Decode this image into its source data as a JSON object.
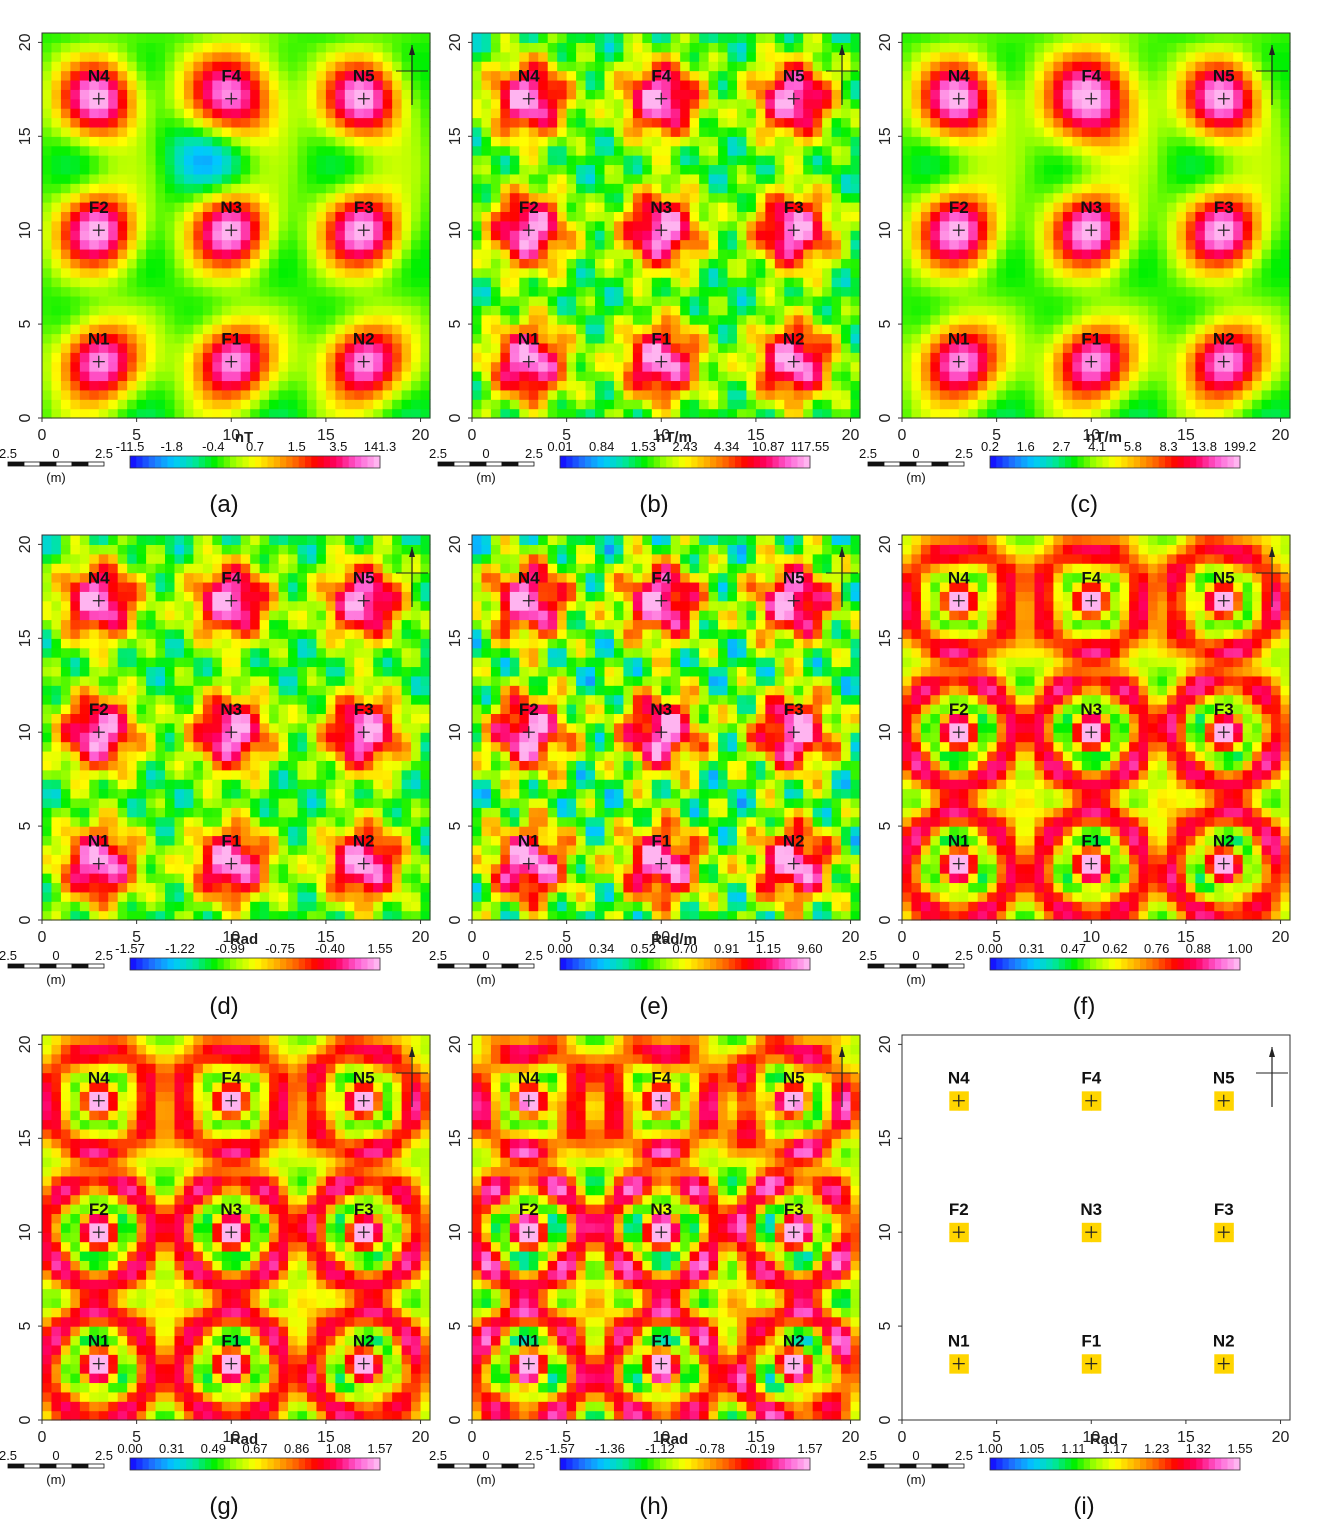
{
  "colors": {
    "ramp": [
      "#1414ff",
      "#1e78ff",
      "#00c8ff",
      "#00e6a0",
      "#00f000",
      "#a0ff00",
      "#ffff00",
      "#ffb400",
      "#ff6400",
      "#ff0000",
      "#ff0064",
      "#ff5ad2",
      "#ffb4f0"
    ]
  },
  "scale_bar": {
    "left": "2.5",
    "center": "0",
    "right": "2.5",
    "unit": "(m)"
  },
  "chart_data": [
    {
      "type": "heatmap",
      "caption": "(a)",
      "unit": "nT",
      "colorbar_ticks": [
        "-11.5",
        "-1.8",
        "-0.4",
        "0.7",
        "1.5",
        "3.5",
        "141.3"
      ],
      "x_ticks": [
        "0",
        "5",
        "10",
        "15",
        "20"
      ],
      "y_ticks": [
        "0",
        "5",
        "10",
        "15",
        "20"
      ],
      "xlim": [
        0,
        20.5
      ],
      "ylim": [
        0,
        20.5
      ],
      "targets": [
        {
          "label": "N4",
          "x": 3,
          "y": 17
        },
        {
          "label": "F4",
          "x": 10,
          "y": 17
        },
        {
          "label": "N5",
          "x": 17,
          "y": 17
        },
        {
          "label": "F2",
          "x": 3,
          "y": 10
        },
        {
          "label": "N3",
          "x": 10,
          "y": 10
        },
        {
          "label": "F3",
          "x": 17,
          "y": 10
        },
        {
          "label": "N1",
          "x": 3,
          "y": 3
        },
        {
          "label": "F1",
          "x": 10,
          "y": 3
        },
        {
          "label": "N2",
          "x": 17,
          "y": 3
        }
      ],
      "style": "smooth",
      "background": 0.45
    },
    {
      "type": "heatmap",
      "caption": "(b)",
      "unit": "nT/m",
      "colorbar_ticks": [
        "0.01",
        "0.84",
        "1.53",
        "2.43",
        "4.34",
        "10.87",
        "117.55"
      ],
      "x_ticks": [
        "0",
        "5",
        "10",
        "15",
        "20"
      ],
      "y_ticks": [
        "0",
        "5",
        "10",
        "15",
        "20"
      ],
      "xlim": [
        0,
        20.5
      ],
      "ylim": [
        0,
        20.5
      ],
      "targets": [
        {
          "label": "N4",
          "x": 3,
          "y": 17
        },
        {
          "label": "F4",
          "x": 10,
          "y": 17
        },
        {
          "label": "N5",
          "x": 17,
          "y": 17
        },
        {
          "label": "F2",
          "x": 3,
          "y": 10
        },
        {
          "label": "N3",
          "x": 10,
          "y": 10
        },
        {
          "label": "F3",
          "x": 17,
          "y": 10
        },
        {
          "label": "N1",
          "x": 3,
          "y": 3
        },
        {
          "label": "F1",
          "x": 10,
          "y": 3
        },
        {
          "label": "N2",
          "x": 17,
          "y": 3
        }
      ],
      "style": "texture",
      "background": 0.3
    },
    {
      "type": "heatmap",
      "caption": "(c)",
      "unit": "nT/m",
      "colorbar_ticks": [
        "0.2",
        "1.6",
        "2.7",
        "4.1",
        "5.8",
        "8.3",
        "13.8",
        "199.2"
      ],
      "x_ticks": [
        "0",
        "5",
        "10",
        "15",
        "20"
      ],
      "y_ticks": [
        "0",
        "5",
        "10",
        "15",
        "20"
      ],
      "xlim": [
        0,
        20.5
      ],
      "ylim": [
        0,
        20.5
      ],
      "targets": [
        {
          "label": "N4",
          "x": 3,
          "y": 17
        },
        {
          "label": "F4",
          "x": 10,
          "y": 17
        },
        {
          "label": "N5",
          "x": 17,
          "y": 17
        },
        {
          "label": "F2",
          "x": 3,
          "y": 10
        },
        {
          "label": "N3",
          "x": 10,
          "y": 10
        },
        {
          "label": "F3",
          "x": 17,
          "y": 10
        },
        {
          "label": "N1",
          "x": 3,
          "y": 3
        },
        {
          "label": "F1",
          "x": 10,
          "y": 3
        },
        {
          "label": "N2",
          "x": 17,
          "y": 3
        }
      ],
      "style": "smooth",
      "background": 0.3
    },
    {
      "type": "heatmap",
      "caption": "(d)",
      "unit": "Rad",
      "colorbar_ticks": [
        "-1.57",
        "-1.22",
        "-0.99",
        "-0.75",
        "-0.40",
        "1.55"
      ],
      "x_ticks": [
        "0",
        "5",
        "10",
        "15",
        "20"
      ],
      "y_ticks": [
        "0",
        "5",
        "10",
        "15",
        "20"
      ],
      "xlim": [
        0,
        20.5
      ],
      "ylim": [
        0,
        20.5
      ],
      "targets": [
        {
          "label": "N4",
          "x": 3,
          "y": 17
        },
        {
          "label": "F4",
          "x": 10,
          "y": 17
        },
        {
          "label": "N5",
          "x": 17,
          "y": 17
        },
        {
          "label": "F2",
          "x": 3,
          "y": 10
        },
        {
          "label": "N3",
          "x": 10,
          "y": 10
        },
        {
          "label": "F3",
          "x": 17,
          "y": 10
        },
        {
          "label": "N1",
          "x": 3,
          "y": 3
        },
        {
          "label": "F1",
          "x": 10,
          "y": 3
        },
        {
          "label": "N2",
          "x": 17,
          "y": 3
        }
      ],
      "style": "texture",
      "background": 0.35
    },
    {
      "type": "heatmap",
      "caption": "(e)",
      "unit": "Rad/m",
      "colorbar_ticks": [
        "0.00",
        "0.34",
        "0.52",
        "0.70",
        "0.91",
        "1.15",
        "9.60"
      ],
      "x_ticks": [
        "0",
        "5",
        "10",
        "15",
        "20"
      ],
      "y_ticks": [
        "0",
        "5",
        "10",
        "15",
        "20"
      ],
      "xlim": [
        0,
        20.5
      ],
      "ylim": [
        0,
        20.5
      ],
      "targets": [
        {
          "label": "N4",
          "x": 3,
          "y": 17
        },
        {
          "label": "F4",
          "x": 10,
          "y": 17
        },
        {
          "label": "N5",
          "x": 17,
          "y": 17
        },
        {
          "label": "F2",
          "x": 3,
          "y": 10
        },
        {
          "label": "N3",
          "x": 10,
          "y": 10
        },
        {
          "label": "F3",
          "x": 17,
          "y": 10
        },
        {
          "label": "N1",
          "x": 3,
          "y": 3
        },
        {
          "label": "F1",
          "x": 10,
          "y": 3
        },
        {
          "label": "N2",
          "x": 17,
          "y": 3
        }
      ],
      "style": "noisy",
      "background": 0.35
    },
    {
      "type": "heatmap",
      "caption": "(f)",
      "unit": "",
      "colorbar_ticks": [
        "0.00",
        "0.31",
        "0.47",
        "0.62",
        "0.76",
        "0.88",
        "1.00"
      ],
      "x_ticks": [
        "0",
        "5",
        "10",
        "15",
        "20"
      ],
      "y_ticks": [
        "0",
        "5",
        "10",
        "15",
        "20"
      ],
      "xlim": [
        0,
        20.5
      ],
      "ylim": [
        0,
        20.5
      ],
      "targets": [
        {
          "label": "N4",
          "x": 3,
          "y": 17
        },
        {
          "label": "F4",
          "x": 10,
          "y": 17
        },
        {
          "label": "N5",
          "x": 17,
          "y": 17
        },
        {
          "label": "F2",
          "x": 3,
          "y": 10
        },
        {
          "label": "N3",
          "x": 10,
          "y": 10
        },
        {
          "label": "F3",
          "x": 17,
          "y": 10
        },
        {
          "label": "N1",
          "x": 3,
          "y": 3
        },
        {
          "label": "F1",
          "x": 10,
          "y": 3
        },
        {
          "label": "N2",
          "x": 17,
          "y": 3
        }
      ],
      "style": "rings",
      "background": 0.3
    },
    {
      "type": "heatmap",
      "caption": "(g)",
      "unit": "Rad",
      "colorbar_ticks": [
        "0.00",
        "0.31",
        "0.49",
        "0.67",
        "0.86",
        "1.08",
        "1.57"
      ],
      "x_ticks": [
        "0",
        "5",
        "10",
        "15",
        "20"
      ],
      "y_ticks": [
        "0",
        "5",
        "10",
        "15",
        "20"
      ],
      "xlim": [
        0,
        20.5
      ],
      "ylim": [
        0,
        20.5
      ],
      "targets": [
        {
          "label": "N4",
          "x": 3,
          "y": 17
        },
        {
          "label": "F4",
          "x": 10,
          "y": 17
        },
        {
          "label": "N5",
          "x": 17,
          "y": 17
        },
        {
          "label": "F2",
          "x": 3,
          "y": 10
        },
        {
          "label": "N3",
          "x": 10,
          "y": 10
        },
        {
          "label": "F3",
          "x": 17,
          "y": 10
        },
        {
          "label": "N1",
          "x": 3,
          "y": 3
        },
        {
          "label": "F1",
          "x": 10,
          "y": 3
        },
        {
          "label": "N2",
          "x": 17,
          "y": 3
        }
      ],
      "style": "rings",
      "background": 0.3
    },
    {
      "type": "heatmap",
      "caption": "(h)",
      "unit": "Rad",
      "colorbar_ticks": [
        "-1.57",
        "-1.36",
        "-1.12",
        "-0.78",
        "-0.19",
        "1.57"
      ],
      "x_ticks": [
        "0",
        "5",
        "10",
        "15",
        "20"
      ],
      "y_ticks": [
        "0",
        "5",
        "10",
        "15",
        "20"
      ],
      "xlim": [
        0,
        20.5
      ],
      "ylim": [
        0,
        20.5
      ],
      "targets": [
        {
          "label": "N4",
          "x": 3,
          "y": 17
        },
        {
          "label": "F4",
          "x": 10,
          "y": 17
        },
        {
          "label": "N5",
          "x": 17,
          "y": 17
        },
        {
          "label": "F2",
          "x": 3,
          "y": 10
        },
        {
          "label": "N3",
          "x": 10,
          "y": 10
        },
        {
          "label": "F3",
          "x": 17,
          "y": 10
        },
        {
          "label": "N1",
          "x": 3,
          "y": 3
        },
        {
          "label": "F1",
          "x": 10,
          "y": 3
        },
        {
          "label": "N2",
          "x": 17,
          "y": 3
        }
      ],
      "style": "ringsNoisy",
      "background": 0.3
    },
    {
      "type": "heatmap",
      "caption": "(i)",
      "unit": "Rad",
      "colorbar_ticks": [
        "1.00",
        "1.05",
        "1.11",
        "1.17",
        "1.23",
        "1.32",
        "1.55"
      ],
      "x_ticks": [
        "0",
        "5",
        "10",
        "15",
        "20"
      ],
      "y_ticks": [
        "0",
        "5",
        "10",
        "15",
        "20"
      ],
      "xlim": [
        0,
        20.5
      ],
      "ylim": [
        0,
        20.5
      ],
      "targets": [
        {
          "label": "N4",
          "x": 3,
          "y": 17
        },
        {
          "label": "F4",
          "x": 10,
          "y": 17
        },
        {
          "label": "N5",
          "x": 17,
          "y": 17
        },
        {
          "label": "F2",
          "x": 3,
          "y": 10
        },
        {
          "label": "N3",
          "x": 10,
          "y": 10
        },
        {
          "label": "F3",
          "x": 17,
          "y": 10
        },
        {
          "label": "N1",
          "x": 3,
          "y": 3
        },
        {
          "label": "F1",
          "x": 10,
          "y": 3
        },
        {
          "label": "N2",
          "x": 17,
          "y": 3
        }
      ],
      "style": "sparse",
      "background": 0
    }
  ]
}
